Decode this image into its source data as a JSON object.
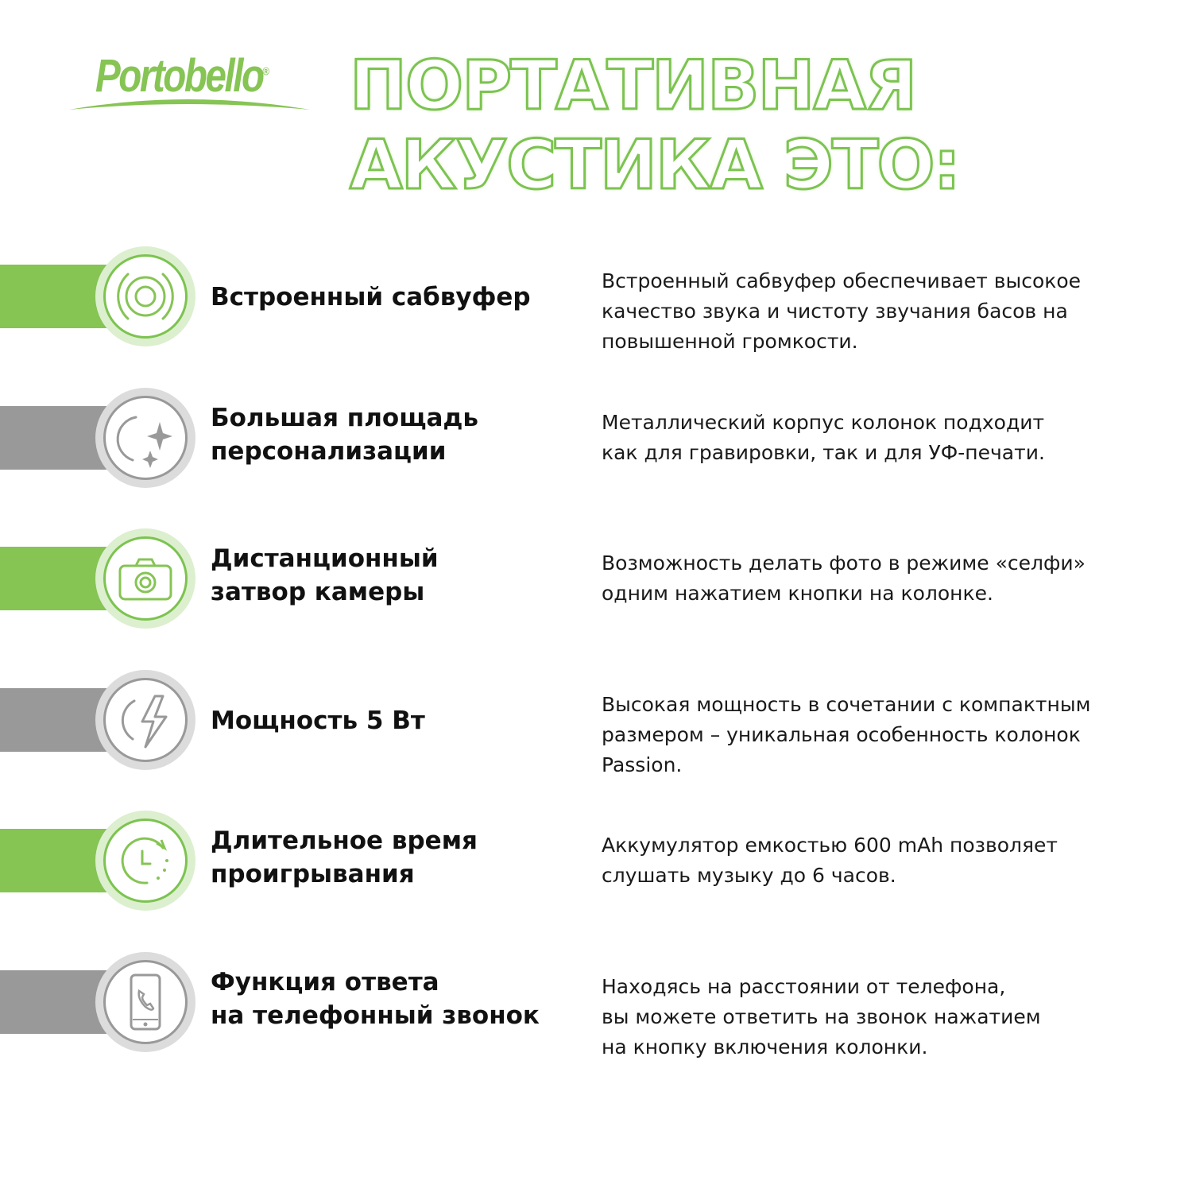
{
  "logo": {
    "text": "Portobello",
    "mark": "®"
  },
  "title": {
    "line1": "ПОРТАТИВНАЯ",
    "line2": "АКУСТИКА ЭТО:"
  },
  "colors": {
    "green": "#86c454",
    "gray": "#999999"
  },
  "features": [
    {
      "icon": "subwoofer-icon",
      "color": "green",
      "heading": [
        "Встроенный сабвуфер"
      ],
      "description": [
        "Встроенный сабвуфер обеспечивает высокое",
        "качество звука и чистоту звучания басов на",
        "повышенной громкости."
      ]
    },
    {
      "icon": "sparkles-icon",
      "color": "gray",
      "heading": [
        "Большая площадь",
        "персонализации"
      ],
      "description": [
        "Металлический корпус колонок подходит",
        "как для гравировки, так и для УФ-печати."
      ]
    },
    {
      "icon": "camera-icon",
      "color": "green",
      "heading": [
        "Дистанционный",
        "затвор камеры"
      ],
      "description": [
        "Возможность делать фото в режиме «селфи»",
        "одним нажатием кнопки на колонке."
      ]
    },
    {
      "icon": "lightning-icon",
      "color": "gray",
      "heading": [
        "Мощность 5 Вт"
      ],
      "description": [
        "Высокая мощность в сочетании с компактным",
        "размером – уникальная особенность колонок",
        "Passion."
      ]
    },
    {
      "icon": "clock-icon",
      "color": "green",
      "heading": [
        "Длительное время",
        "проигрывания"
      ],
      "description": [
        "Аккумулятор емкостью 600 mAh позволяет",
        "слушать музыку до 6 часов."
      ]
    },
    {
      "icon": "phone-call-icon",
      "color": "gray",
      "heading": [
        "Функция ответа",
        "на телефонный звонок"
      ],
      "description": [
        "Находясь на расстоянии от телефона,",
        "вы можете ответить на звонок нажатием",
        "на кнопку включения колонки."
      ]
    }
  ]
}
